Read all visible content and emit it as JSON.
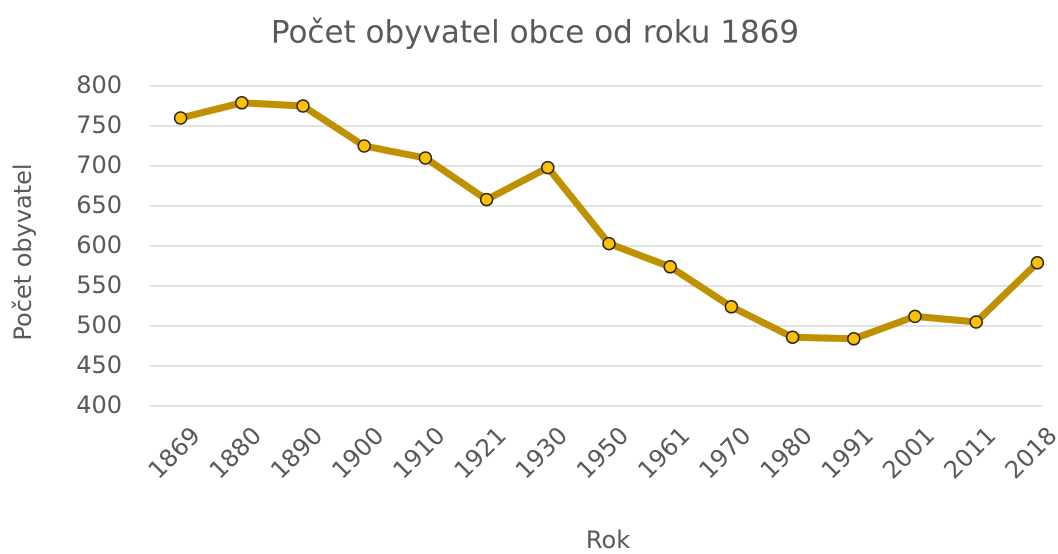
{
  "chart_data": {
    "type": "line",
    "title": "Počet obyvatel obce od roku 1869",
    "x_label": "Rok",
    "y_label": "Počet obyvatel",
    "categories": [
      "1869",
      "1880",
      "1890",
      "1900",
      "1910",
      "1921",
      "1930",
      "1950",
      "1961",
      "1970",
      "1980",
      "1991",
      "2001",
      "2011",
      "2018"
    ],
    "series": [
      {
        "name": "Počet obyvatel",
        "color": "#bf9000",
        "marker_color": "#ffc000",
        "values": [
          760,
          779,
          775,
          725,
          710,
          658,
          698,
          603,
          574,
          524,
          486,
          484,
          512,
          505,
          579
        ]
      }
    ],
    "ylim": [
      400,
      800
    ],
    "yticks": [
      400,
      450,
      500,
      550,
      600,
      650,
      700,
      750,
      800
    ],
    "grid": true
  }
}
